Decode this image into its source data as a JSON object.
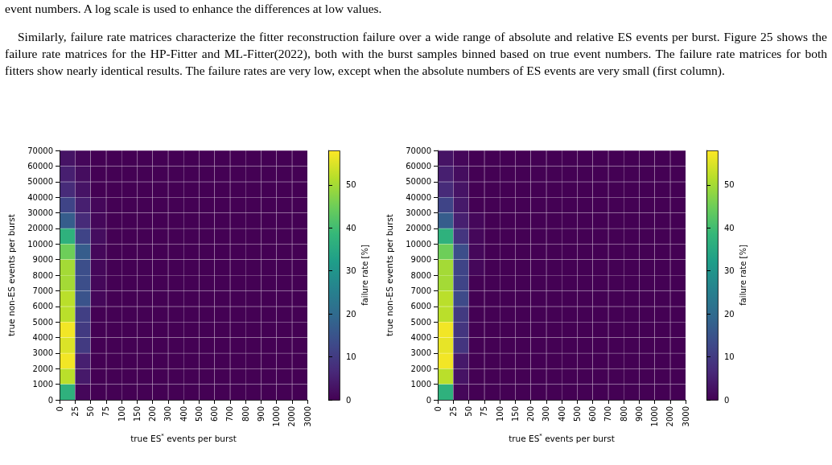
{
  "chart_data": [
    {
      "type": "heatmap",
      "xlabel": "true ES$^{*}$ events per burst",
      "ylabel": "true non-ES events per burst",
      "clabel": "failure rate [%]",
      "annotations": [
        "event numbers. A log scale is used to enhance the differences at low values.",
        "Similarly, failure rate matrices characterize the fitter reconstruction failure over a wide range of absolute and relative ES events per burst. Figure 25 shows the failure rate matrices for the HP-Fitter and ML-Fitter(2022), both with the burst samples binned based on true event numbers. The failure rate matrices for both fitters show nearly identical results. The failure rates are very low, except when the absolute numbers of ES events are very small (first column).",
        "0",
        "25",
        "50",
        "75",
        "100",
        "150",
        "200",
        "300",
        "400",
        "500",
        "600",
        "700",
        "800",
        "900",
        "1000",
        "2000",
        "3000",
        "0",
        "1000",
        "2000",
        "3000",
        "4000",
        "5000",
        "6000",
        "7000",
        "8000",
        "9000",
        "10000",
        "20000",
        "30000",
        "40000",
        "50000",
        "60000",
        "70000"
      ],
      "categories": [
        null,
        null,
        null,
        null,
        null,
        null,
        null,
        null,
        null,
        null,
        null,
        null,
        null,
        null,
        null,
        null
      ],
      "y_categories": [
        null,
        null,
        null,
        null,
        null,
        null,
        null,
        null,
        null,
        null,
        null,
        null,
        null,
        null,
        null,
        null
      ],
      "clim": [
        0,
        58
      ],
      "cticks": [
        0,
        10,
        20,
        30,
        40,
        50
      ],
      "grid": true,
      "cells": [
        [
          3,
          1,
          0,
          0,
          0,
          0,
          0,
          0,
          0,
          0,
          0,
          0,
          0,
          0,
          0,
          0
        ],
        [
          5,
          2,
          0,
          0,
          0,
          0,
          0,
          0,
          0,
          0,
          0,
          0,
          0,
          0,
          0,
          0
        ],
        [
          7,
          3,
          0,
          0,
          0,
          0,
          0,
          0,
          0,
          0,
          0,
          0,
          0,
          0,
          0,
          0
        ],
        [
          12,
          5,
          1,
          0,
          0,
          0,
          0,
          0,
          0,
          0,
          0,
          0,
          0,
          0,
          0,
          0
        ],
        [
          17,
          7,
          1,
          0,
          0,
          0,
          0,
          0,
          0,
          0,
          0,
          0,
          0,
          0,
          0,
          0
        ],
        [
          37,
          12,
          2,
          0,
          0,
          0,
          0,
          0,
          0,
          0,
          0,
          0,
          0,
          0,
          0,
          0
        ],
        [
          45,
          17,
          1,
          0,
          0,
          0,
          0,
          0,
          0,
          0,
          0,
          0,
          0,
          0,
          0,
          0
        ],
        [
          50,
          14,
          1,
          0,
          0,
          0,
          0,
          0,
          0,
          0,
          0,
          0,
          0,
          0,
          0,
          0
        ],
        [
          50,
          14,
          1,
          0,
          0,
          0,
          0,
          0,
          0,
          0,
          0,
          0,
          0,
          0,
          0,
          0
        ],
        [
          52,
          15,
          1,
          0,
          0,
          0,
          0,
          0,
          0,
          0,
          0,
          0,
          0,
          0,
          0,
          0
        ],
        [
          52,
          11,
          0,
          0,
          0,
          0,
          0,
          0,
          0,
          0,
          0,
          0,
          0,
          0,
          0,
          0
        ],
        [
          57,
          10,
          0,
          0,
          0,
          0,
          0,
          0,
          0,
          0,
          0,
          0,
          0,
          0,
          0,
          0
        ],
        [
          55,
          10,
          0,
          0,
          0,
          0,
          0,
          0,
          0,
          0,
          0,
          0,
          0,
          0,
          0,
          0
        ],
        [
          57,
          5,
          0,
          0,
          0,
          0,
          0,
          0,
          0,
          0,
          0,
          0,
          0,
          0,
          0,
          0
        ],
        [
          52,
          4,
          0,
          0,
          0,
          0,
          0,
          0,
          0,
          0,
          0,
          0,
          0,
          0,
          0,
          0
        ],
        [
          37,
          1,
          0,
          0,
          0,
          0,
          0,
          0,
          0,
          0,
          0,
          0,
          0,
          0,
          0,
          0
        ]
      ]
    },
    {
      "type": "heatmap",
      "xlabel": "true ES$^{*}$ events per burst",
      "ylabel": "true non-ES events per burst",
      "clabel": "failure rate [%]",
      "annotations": [
        "0",
        "25",
        "50",
        "75",
        "100",
        "150",
        "200",
        "300",
        "400",
        "500",
        "600",
        "700",
        "800",
        "900",
        "1000",
        "2000",
        "3000",
        "0",
        "1000",
        "2000",
        "3000",
        "4000",
        "5000",
        "6000",
        "7000",
        "8000",
        "9000",
        "10000",
        "20000",
        "30000",
        "40000",
        "50000",
        "60000",
        "70000"
      ],
      "categories": [
        null,
        null,
        null,
        null,
        null,
        null,
        null,
        null,
        null,
        null,
        null,
        null,
        null,
        null,
        null,
        null
      ],
      "y_categories": [
        null,
        null,
        null,
        null,
        null,
        null,
        null,
        null,
        null,
        null,
        null,
        null,
        null,
        null,
        null,
        null
      ],
      "clim": [
        0,
        58
      ],
      "cticks": [
        0,
        10,
        20,
        30,
        40,
        50
      ],
      "grid": true,
      "cells": [
        [
          3,
          1,
          0,
          0,
          0,
          0,
          0,
          0,
          0,
          0,
          0,
          0,
          0,
          0,
          0,
          0
        ],
        [
          5,
          2,
          0,
          0,
          0,
          0,
          0,
          0,
          0,
          0,
          0,
          0,
          0,
          0,
          0,
          0
        ],
        [
          7,
          3,
          0,
          0,
          0,
          0,
          0,
          0,
          0,
          0,
          0,
          0,
          0,
          0,
          0,
          0
        ],
        [
          12,
          4,
          0,
          0,
          0,
          0,
          0,
          0,
          0,
          0,
          0,
          0,
          0,
          0,
          0,
          0
        ],
        [
          17,
          5,
          1,
          0,
          0,
          0,
          0,
          0,
          0,
          0,
          0,
          0,
          0,
          0,
          0,
          0
        ],
        [
          37,
          9,
          1,
          0,
          0,
          0,
          0,
          0,
          0,
          0,
          0,
          0,
          0,
          0,
          0,
          0
        ],
        [
          45,
          14,
          1,
          0,
          0,
          0,
          0,
          0,
          0,
          0,
          0,
          0,
          0,
          0,
          0,
          0
        ],
        [
          50,
          12,
          1,
          0,
          0,
          0,
          0,
          0,
          0,
          0,
          0,
          0,
          0,
          0,
          0,
          0
        ],
        [
          50,
          12,
          0,
          0,
          0,
          0,
          0,
          0,
          0,
          0,
          0,
          0,
          0,
          0,
          0,
          0
        ],
        [
          52,
          13,
          0,
          0,
          0,
          0,
          0,
          0,
          0,
          0,
          0,
          0,
          0,
          0,
          0,
          0
        ],
        [
          52,
          10,
          0,
          0,
          0,
          0,
          0,
          0,
          0,
          0,
          0,
          0,
          0,
          0,
          0,
          0
        ],
        [
          57,
          9,
          0,
          0,
          0,
          0,
          0,
          0,
          0,
          0,
          0,
          0,
          0,
          0,
          0,
          0
        ],
        [
          56,
          9,
          0,
          0,
          0,
          0,
          0,
          0,
          0,
          0,
          0,
          0,
          0,
          0,
          0,
          0
        ],
        [
          57,
          4,
          0,
          0,
          0,
          0,
          0,
          0,
          0,
          0,
          0,
          0,
          0,
          0,
          0,
          0
        ],
        [
          52,
          3,
          0,
          0,
          0,
          0,
          0,
          0,
          0,
          0,
          0,
          0,
          0,
          0,
          0,
          0
        ],
        [
          37,
          1,
          0,
          0,
          0,
          0,
          0,
          0,
          0,
          0,
          0,
          0,
          0,
          0,
          0,
          0
        ]
      ]
    }
  ]
}
